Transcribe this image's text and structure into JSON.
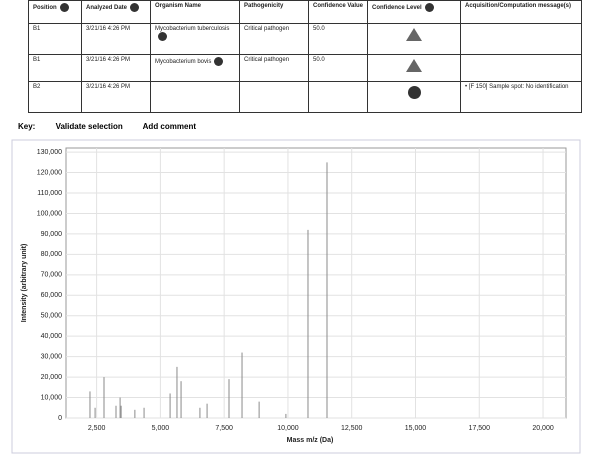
{
  "table": {
    "headers": [
      "Position",
      "Analyzed Date",
      "Organism Name",
      "Pathogenicity",
      "Confidence Value",
      "Confidence Level",
      "Acquisition/Computation message(s)"
    ],
    "rows": [
      [
        "B1",
        "3/21/16 4:26 PM",
        "Mycobacterium tuberculosis",
        "Critical pathogen",
        "50.0",
        null,
        null
      ],
      [
        "B1",
        "3/21/16 4:26 PM",
        "Mycobacterium bovis",
        "Critical pathogen",
        "50.0",
        null,
        null
      ],
      [
        "B2",
        "3/21/16 4:26 PM",
        null,
        null,
        null,
        null,
        "[F 150] Sample spot: No identification"
      ]
    ]
  },
  "key": {
    "label": "Key:",
    "actions": [
      "Validate selection",
      "Add comment"
    ]
  },
  "chart_data": {
    "type": "stem",
    "x_label": "Mass m/z (Da)",
    "y_label": "Intensity (arbitrary unit)",
    "color": "#8a8a8a",
    "x": [
      2240,
      2440,
      2790,
      3260,
      3420,
      3460,
      4000,
      4360,
      5380,
      5650,
      5810,
      6550,
      6830,
      7690,
      8200,
      8870,
      9920,
      10786,
      11531
    ],
    "values": [
      13000,
      5000,
      20000,
      6000,
      10000,
      6000,
      4000,
      5000,
      12000,
      25000,
      18000,
      5000,
      7000,
      19000,
      32000,
      8000,
      2000,
      92000,
      125000
    ],
    "xlim": [
      1300,
      20900
    ],
    "ylim": [
      0,
      132000
    ],
    "xticks": [
      {
        "value": 2500,
        "label": "2,500"
      },
      {
        "value": 5000,
        "label": "5,000"
      },
      {
        "value": 7500,
        "label": "7,500"
      },
      {
        "value": 10000,
        "label": "10,000"
      },
      {
        "value": 12500,
        "label": "12,500"
      },
      {
        "value": 15000,
        "label": "15,000"
      },
      {
        "value": 17500,
        "label": "17,500"
      },
      {
        "value": 20000,
        "label": "20,000"
      }
    ],
    "yticks": [
      0,
      {
        "value": 10000,
        "label": "10,000"
      },
      {
        "value": 20000,
        "label": "20,000"
      },
      {
        "value": 30000,
        "label": "30,000"
      },
      {
        "value": 40000,
        "label": "40,000"
      },
      {
        "value": 50000,
        "label": "50,000"
      },
      {
        "value": 60000,
        "label": "60,000"
      },
      {
        "value": 70000,
        "label": "70,000"
      },
      {
        "value": 80000,
        "label": "80,000"
      },
      {
        "value": 90000,
        "label": "90,000"
      },
      {
        "value": 100000,
        "label": "100,000"
      },
      {
        "value": 110000,
        "label": "110,000"
      },
      {
        "value": 120000,
        "label": "120,000"
      },
      {
        "value": 130000,
        "label": "130,000"
      }
    ],
    "grid": true
  }
}
